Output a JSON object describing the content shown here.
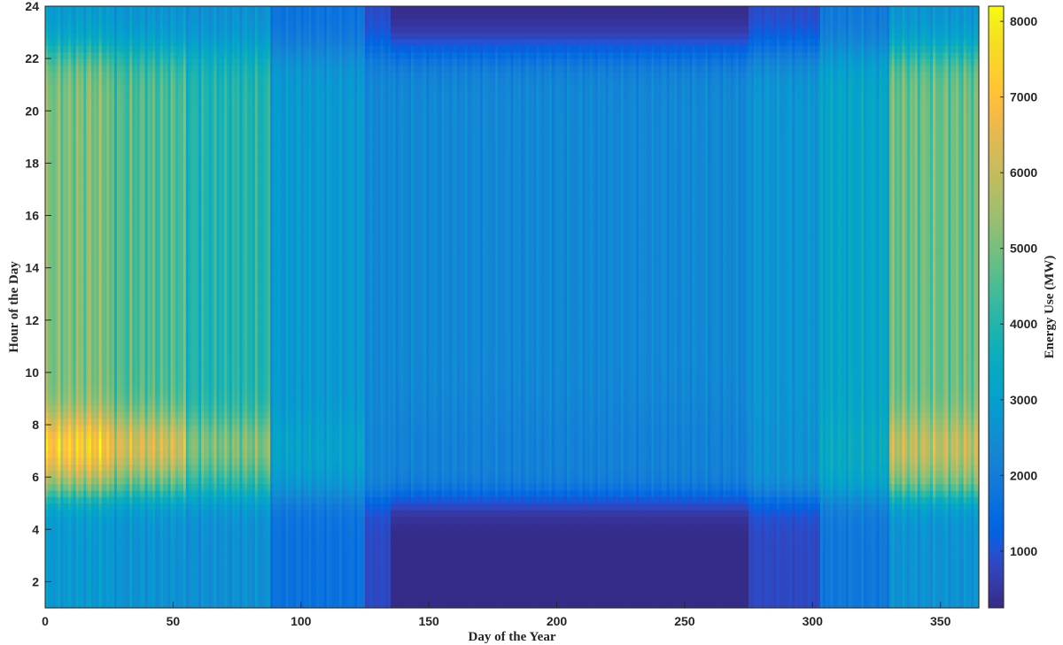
{
  "chart_data": {
    "type": "heatmap",
    "title": "",
    "xlabel": "Day of the Year",
    "ylabel": "Hour of the Day",
    "colorbar_label": "Energy Use (MW)",
    "xlim": [
      0,
      365
    ],
    "ylim": [
      1,
      24
    ],
    "clim": [
      250,
      8200
    ],
    "colormap": "parula",
    "x_ticks": [
      0,
      50,
      100,
      150,
      200,
      250,
      300,
      350
    ],
    "y_ticks": [
      2,
      4,
      6,
      8,
      10,
      12,
      14,
      16,
      18,
      20,
      22,
      24
    ],
    "colorbar_ticks": [
      1000,
      2000,
      3000,
      4000,
      5000,
      6000,
      7000,
      8000
    ],
    "grid": false,
    "seasonal_regimes": [
      {
        "days": [
          0,
          25
        ],
        "night_mw": 3000,
        "morning_peak_mw": 7600,
        "evening_mw": 5400
      },
      {
        "days": [
          25,
          55
        ],
        "night_mw": 2800,
        "morning_peak_mw": 6600,
        "evening_mw": 4800
      },
      {
        "days": [
          55,
          88
        ],
        "night_mw": 2700,
        "morning_peak_mw": 5400,
        "evening_mw": 4200
      },
      {
        "days": [
          88,
          125
        ],
        "night_mw": 1800,
        "morning_peak_mw": 3300,
        "evening_mw": 3000
      },
      {
        "days": [
          125,
          135
        ],
        "night_mw": 900,
        "morning_peak_mw": 2400,
        "evening_mw": 2500
      },
      {
        "days": [
          135,
          275
        ],
        "night_mw": 260,
        "morning_peak_mw": 1900,
        "evening_mw": 2500
      },
      {
        "days": [
          275,
          303
        ],
        "night_mw": 900,
        "morning_peak_mw": 2800,
        "evening_mw": 2900
      },
      {
        "days": [
          303,
          330
        ],
        "night_mw": 2000,
        "morning_peak_mw": 3600,
        "evening_mw": 3400
      },
      {
        "days": [
          330,
          365
        ],
        "night_mw": 2800,
        "morning_peak_mw": 6300,
        "evening_mw": 5200
      }
    ]
  }
}
